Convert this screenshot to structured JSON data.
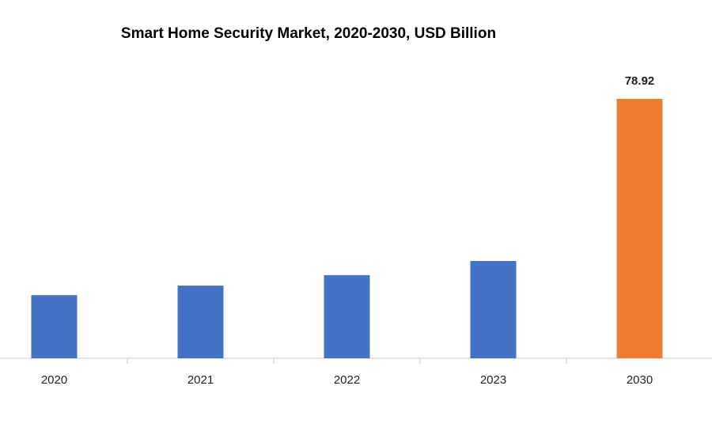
{
  "chart_data": {
    "type": "bar",
    "title": "Smart Home Security Market, 2020-2030, USD Billion",
    "categories": [
      "2020",
      "2021",
      "2022",
      "2023",
      "2030"
    ],
    "values": [
      19.2,
      22.1,
      25.3,
      29.6,
      78.92
    ],
    "value_labels": [
      null,
      null,
      null,
      null,
      "78.92"
    ],
    "colors": [
      "#4472c4",
      "#4472c4",
      "#4472c4",
      "#4472c4",
      "#ed7d31"
    ]
  }
}
